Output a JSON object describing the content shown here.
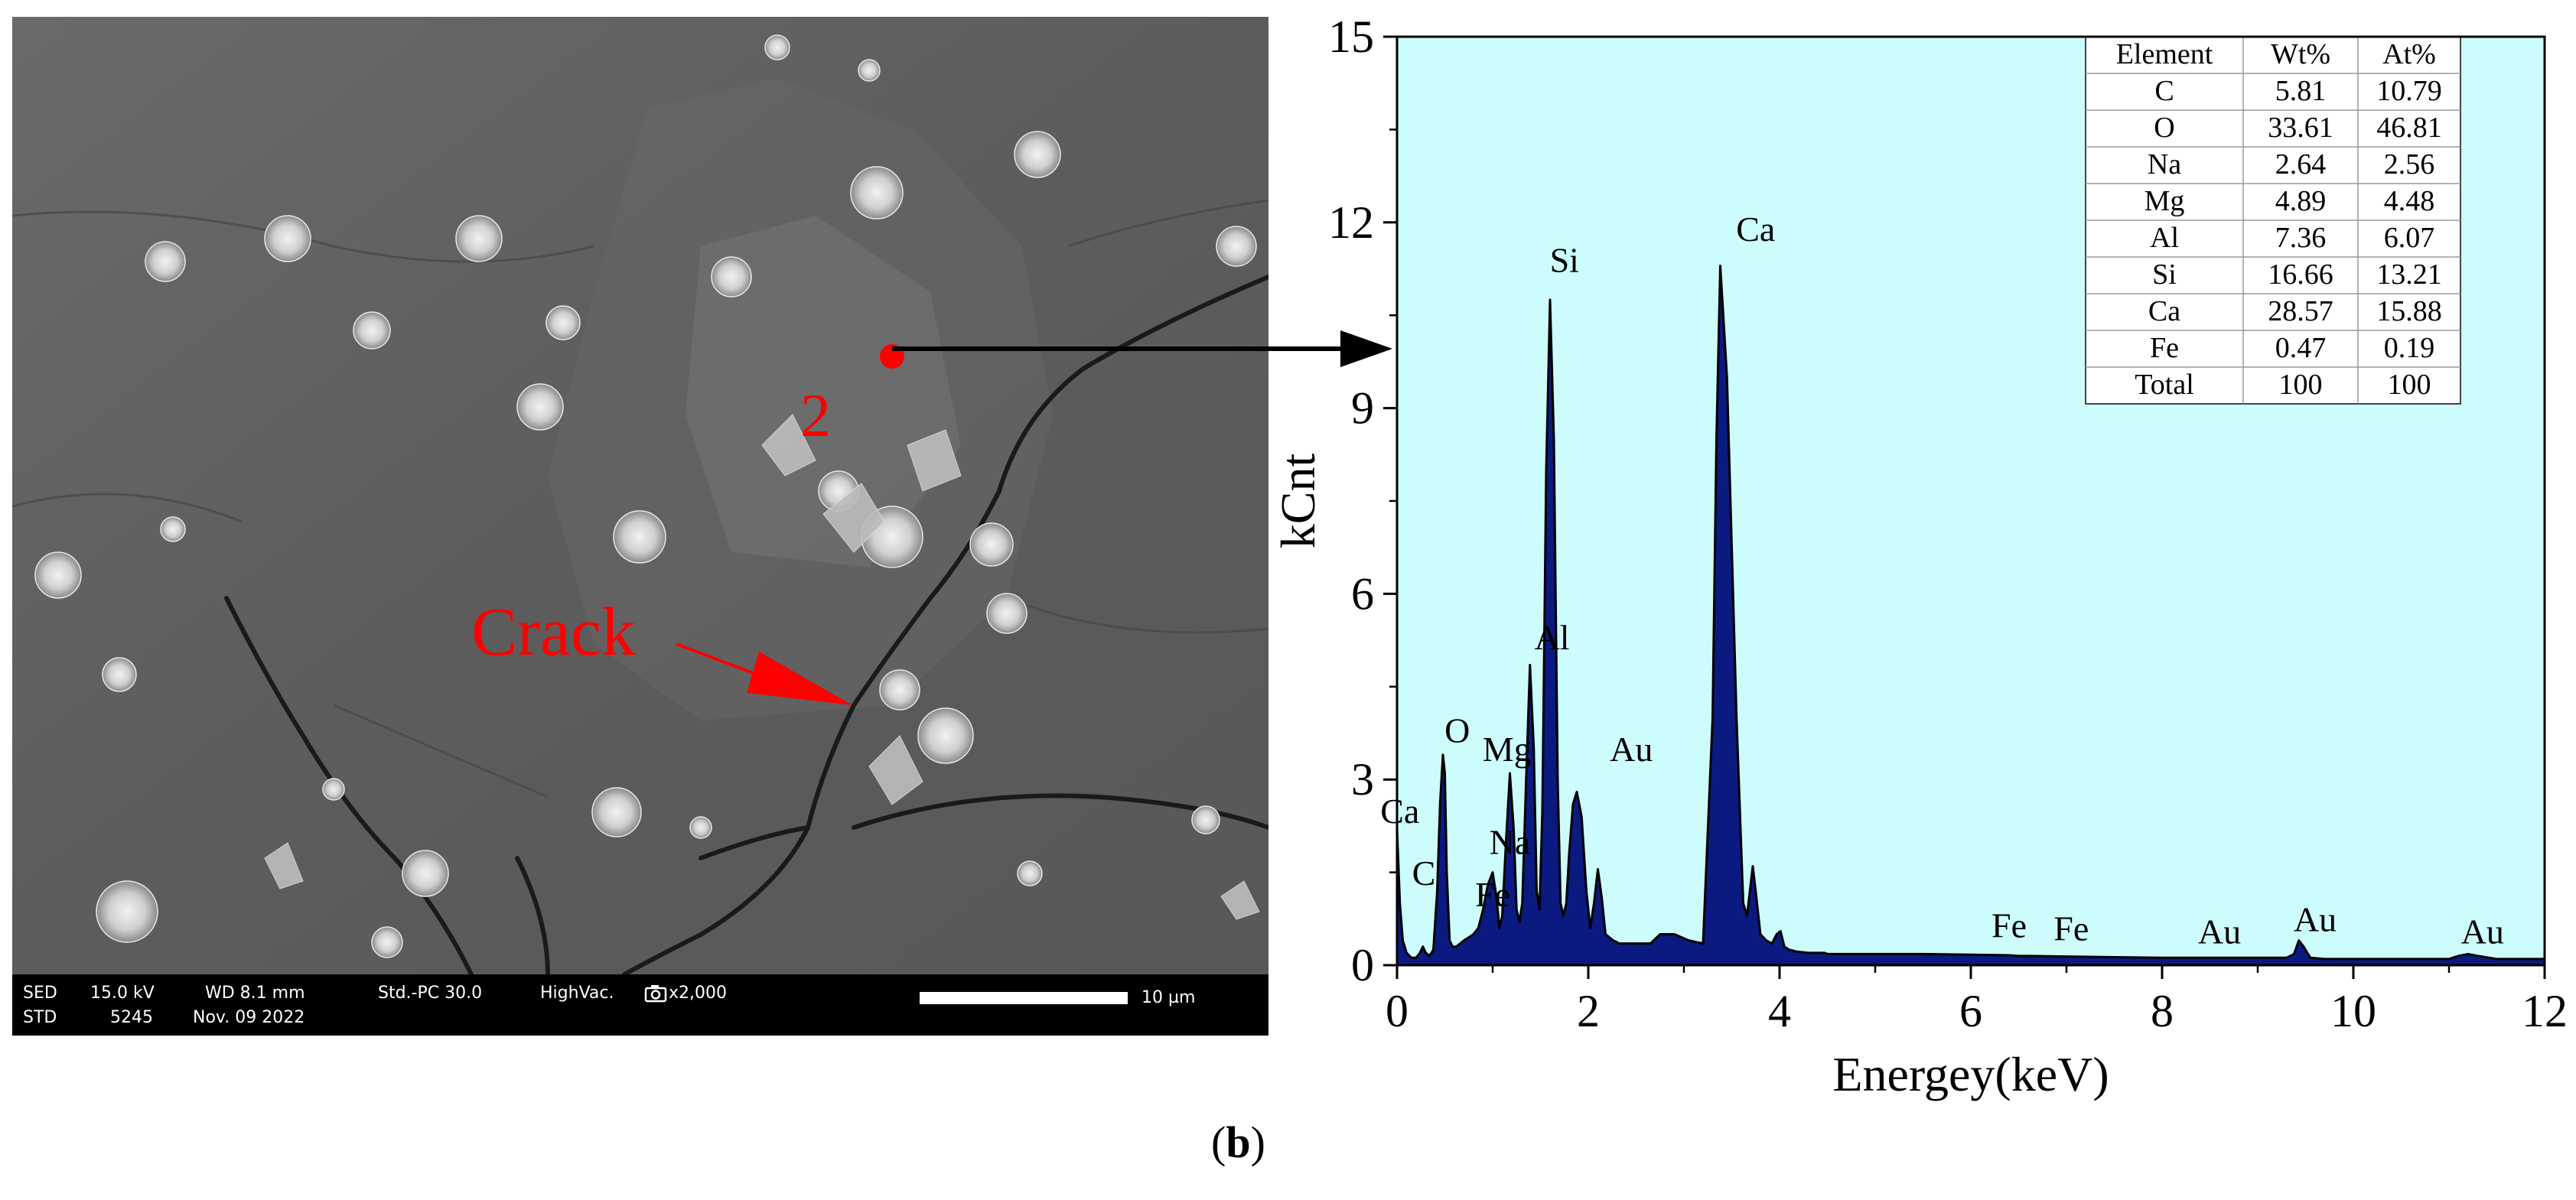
{
  "sem": {
    "infobar": {
      "row1": [
        "SED",
        "15.0 kV",
        "WD 8.1 mm",
        "Std.-PC 30.0",
        "HighVac.",
        "x2,000"
      ],
      "row2": [
        "STD",
        "5245",
        "Nov. 09 2022"
      ],
      "scale_label": "10 µm"
    },
    "point_label": "2",
    "crack_label": "Crack",
    "colors": {
      "annotation": "#ff0000",
      "background": "#5e5e5e"
    }
  },
  "chart_data": {
    "type": "line",
    "title": "",
    "xlabel": "Energey(keV)",
    "ylabel": "kCnt",
    "xlim": [
      0,
      12
    ],
    "ylim": [
      0,
      15
    ],
    "xticks": [
      0,
      2,
      4,
      6,
      8,
      10,
      12
    ],
    "yticks": [
      0,
      3,
      6,
      9,
      12,
      15
    ],
    "grid": false,
    "colors": {
      "plot_bg": "#ccfcfc",
      "fill": "#0a1a80",
      "line": "#000000"
    },
    "series": [
      {
        "x": [
          0.0,
          0.03,
          0.06,
          0.1,
          0.15,
          0.2,
          0.24,
          0.27,
          0.3,
          0.34,
          0.38,
          0.42,
          0.45,
          0.48,
          0.5,
          0.52,
          0.55,
          0.58,
          0.62,
          0.66,
          0.7,
          0.75,
          0.8,
          0.85,
          0.9,
          0.95,
          1.0,
          1.04,
          1.07,
          1.1,
          1.14,
          1.18,
          1.22,
          1.25,
          1.28,
          1.31,
          1.35,
          1.39,
          1.43,
          1.46,
          1.49,
          1.52,
          1.56,
          1.6,
          1.64,
          1.68,
          1.71,
          1.74,
          1.77,
          1.8,
          1.84,
          1.88,
          1.93,
          1.98,
          2.02,
          2.06,
          2.1,
          2.14,
          2.18,
          2.22,
          2.26,
          2.29,
          2.32,
          2.35,
          2.39,
          2.45,
          2.55,
          2.65,
          2.75,
          2.9,
          3.05,
          3.2,
          3.3,
          3.34,
          3.38,
          3.45,
          3.55,
          3.62,
          3.66,
          3.69,
          3.72,
          3.75,
          3.8,
          3.86,
          3.92,
          3.97,
          4.01,
          4.05,
          4.1,
          4.18,
          4.3,
          4.42,
          4.47,
          4.5,
          4.54,
          4.62,
          4.8,
          5.0,
          5.5,
          6.0,
          6.4,
          6.5,
          6.6,
          7.0,
          7.5,
          8.0,
          8.5,
          9.0,
          9.3,
          9.38,
          9.43,
          9.48,
          9.55,
          9.7,
          10.0,
          10.5,
          11.0,
          11.1,
          11.2,
          11.3,
          11.5,
          12.0
        ],
        "y": [
          2.2,
          1.0,
          0.4,
          0.2,
          0.12,
          0.12,
          0.2,
          0.3,
          0.2,
          0.15,
          0.25,
          1.2,
          2.6,
          3.4,
          3.1,
          1.5,
          0.4,
          0.3,
          0.3,
          0.35,
          0.4,
          0.45,
          0.5,
          0.6,
          0.9,
          1.3,
          1.5,
          1.1,
          0.6,
          0.8,
          2.0,
          3.1,
          2.2,
          0.9,
          0.7,
          1.0,
          3.0,
          4.85,
          3.5,
          1.2,
          0.9,
          2.5,
          8.0,
          10.75,
          8.5,
          3.0,
          1.0,
          0.8,
          1.0,
          1.8,
          2.6,
          2.8,
          2.4,
          1.2,
          0.6,
          1.0,
          1.55,
          1.1,
          0.5,
          0.45,
          0.4,
          0.38,
          0.35,
          0.35,
          0.35,
          0.35,
          0.35,
          0.35,
          0.5,
          0.5,
          0.4,
          0.35,
          4.0,
          8.5,
          11.3,
          9.5,
          4.0,
          1.0,
          0.8,
          1.2,
          1.6,
          1.2,
          0.5,
          0.4,
          0.35,
          0.5,
          0.55,
          0.3,
          0.25,
          0.22,
          0.2,
          0.2,
          0.2,
          0.18,
          0.18,
          0.18,
          0.18,
          0.18,
          0.18,
          0.17,
          0.16,
          0.15,
          0.15,
          0.14,
          0.13,
          0.12,
          0.12,
          0.12,
          0.12,
          0.18,
          0.4,
          0.3,
          0.12,
          0.1,
          0.1,
          0.1,
          0.1,
          0.15,
          0.18,
          0.15,
          0.1,
          0.1
        ]
      }
    ],
    "peak_labels": [
      {
        "text": "Ca",
        "x": 0.03,
        "y": 2.3
      },
      {
        "text": "C",
        "x": 0.28,
        "y": 1.3
      },
      {
        "text": "O",
        "x": 0.63,
        "y": 3.6
      },
      {
        "text": "Mg",
        "x": 1.15,
        "y": 3.3
      },
      {
        "text": "Na",
        "x": 1.18,
        "y": 1.8
      },
      {
        "text": "Fe",
        "x": 1.0,
        "y": 0.95
      },
      {
        "text": "Al",
        "x": 1.62,
        "y": 5.1
      },
      {
        "text": "Au",
        "x": 2.45,
        "y": 3.3
      },
      {
        "text": "Si",
        "x": 1.75,
        "y": 11.2
      },
      {
        "text": "Ca",
        "x": 3.75,
        "y": 11.7
      },
      {
        "text": "Fe",
        "x": 6.4,
        "y": 0.45
      },
      {
        "text": "Fe",
        "x": 7.05,
        "y": 0.4
      },
      {
        "text": "Au",
        "x": 8.6,
        "y": 0.35
      },
      {
        "text": "Au",
        "x": 9.6,
        "y": 0.55
      },
      {
        "text": "Au",
        "x": 11.35,
        "y": 0.35
      }
    ],
    "table": {
      "headers": [
        "Element",
        "Wt%",
        "At%"
      ],
      "rows": [
        [
          "C",
          "5.81",
          "10.79"
        ],
        [
          "O",
          "33.61",
          "46.81"
        ],
        [
          "Na",
          "2.64",
          "2.56"
        ],
        [
          "Mg",
          "4.89",
          "4.48"
        ],
        [
          "Al",
          "7.36",
          "6.07"
        ],
        [
          "Si",
          "16.66",
          "13.21"
        ],
        [
          "Ca",
          "28.57",
          "15.88"
        ],
        [
          "Fe",
          "0.47",
          "0.19"
        ],
        [
          "Total",
          "100",
          "100"
        ]
      ]
    }
  },
  "caption": {
    "prefix": "(",
    "letter": "b",
    "suffix": ")"
  }
}
